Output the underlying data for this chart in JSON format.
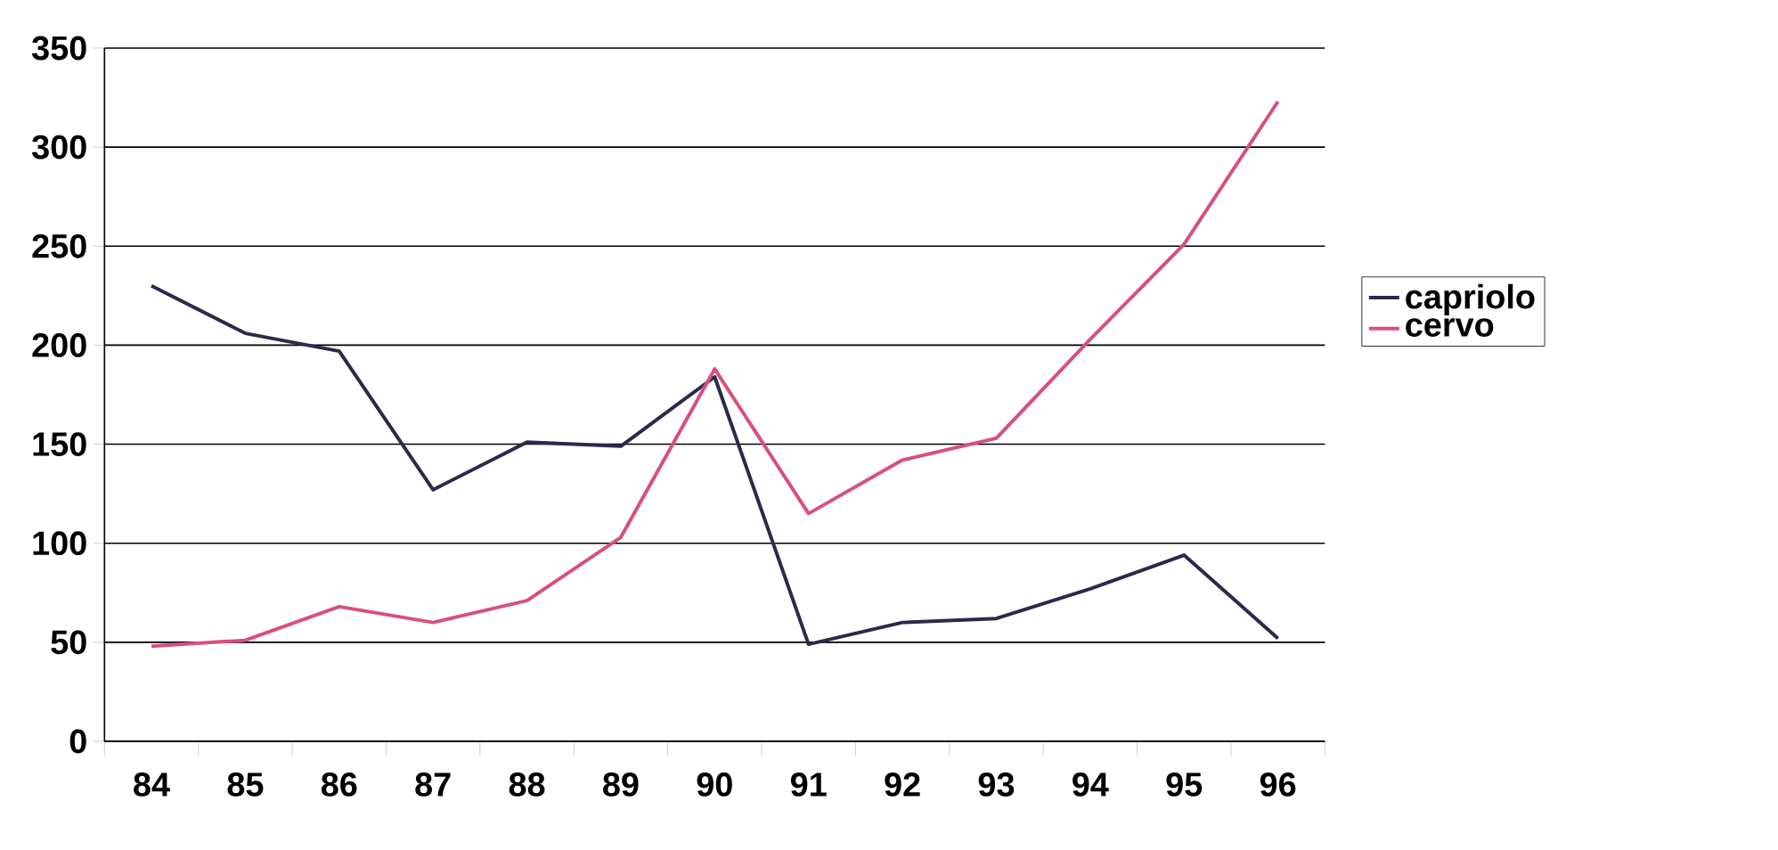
{
  "chart_data": {
    "type": "line",
    "categories": [
      "84",
      "85",
      "86",
      "87",
      "88",
      "89",
      "90",
      "91",
      "92",
      "93",
      "94",
      "95",
      "96"
    ],
    "series": [
      {
        "name": "capriolo",
        "color": "#2a2a4a",
        "values": [
          230,
          206,
          197,
          127,
          151,
          149,
          184,
          49,
          60,
          62,
          77,
          94,
          52
        ]
      },
      {
        "name": "cervo",
        "color": "#d8507a",
        "values": [
          48,
          51,
          68,
          60,
          71,
          103,
          188,
          115,
          142,
          153,
          203,
          251,
          323
        ]
      }
    ],
    "ylim": [
      0,
      350
    ],
    "yticks": [
      0,
      50,
      100,
      150,
      200,
      250,
      300,
      350
    ],
    "grid": "y",
    "legend": "right",
    "marker": "none",
    "line_style": "solid"
  }
}
